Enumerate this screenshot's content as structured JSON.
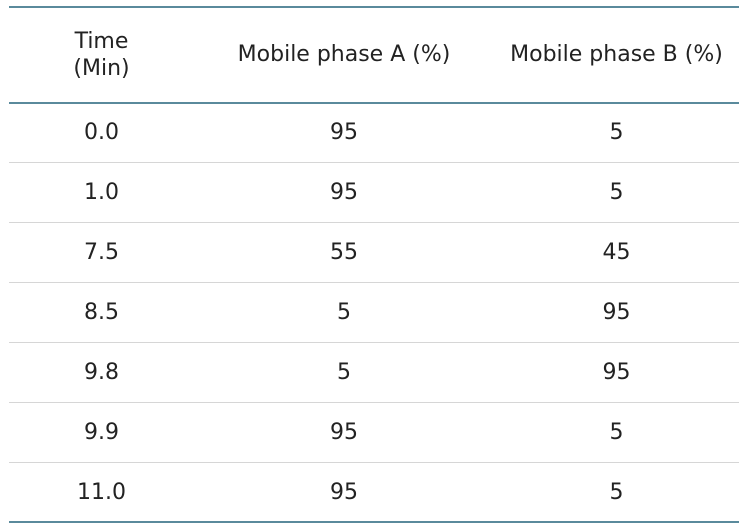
{
  "table": {
    "headers": [
      "Time\n(Min)",
      "Mobile phase A (%)",
      "Mobile phase B (%)"
    ],
    "rows": [
      [
        "0.0",
        "95",
        "5"
      ],
      [
        "1.0",
        "95",
        "5"
      ],
      [
        "7.5",
        "55",
        "45"
      ],
      [
        "8.5",
        "5",
        "95"
      ],
      [
        "9.8",
        "5",
        "95"
      ],
      [
        "9.9",
        "95",
        "5"
      ],
      [
        "11.0",
        "95",
        "5"
      ]
    ]
  },
  "colors": {
    "rule": "#5a8a9c",
    "divider": "#d6d6d6",
    "text": "#222222"
  }
}
